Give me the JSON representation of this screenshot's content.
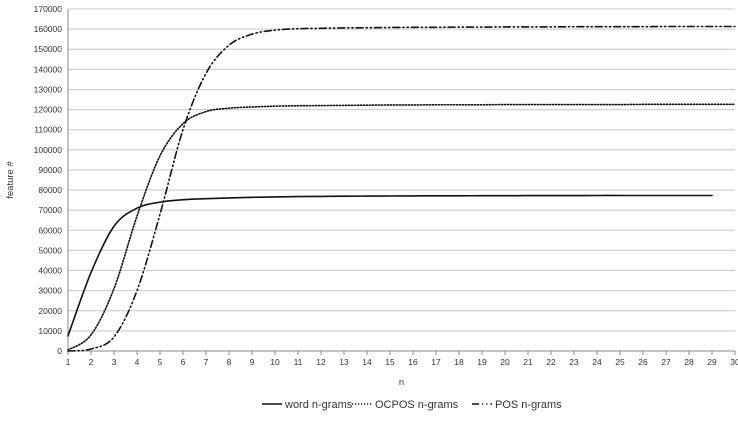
{
  "chart_data": {
    "type": "line",
    "xlabel": "n",
    "ylabel": "feature #",
    "xlim": [
      1,
      30
    ],
    "ylim": [
      0,
      170000
    ],
    "x_ticks": [
      1,
      2,
      3,
      4,
      5,
      6,
      7,
      8,
      9,
      10,
      11,
      12,
      13,
      14,
      15,
      16,
      17,
      18,
      19,
      20,
      21,
      22,
      23,
      24,
      25,
      26,
      27,
      28,
      29,
      30
    ],
    "y_ticks": [
      0,
      10000,
      20000,
      30000,
      40000,
      50000,
      60000,
      70000,
      80000,
      90000,
      100000,
      110000,
      120000,
      130000,
      140000,
      150000,
      160000,
      170000
    ],
    "grid": "horizontal",
    "legend": "bottom",
    "series": [
      {
        "name": "word n-grams",
        "style": "solid",
        "x": [
          1,
          2,
          3,
          4,
          5,
          6,
          7,
          8,
          9,
          10,
          11,
          12,
          13,
          14,
          15,
          16,
          17,
          18,
          19,
          20,
          21,
          22,
          23,
          24,
          25,
          26,
          27,
          28,
          29
        ],
        "values": [
          7500,
          39000,
          62000,
          71000,
          74000,
          75200,
          75700,
          76100,
          76400,
          76600,
          76750,
          76850,
          76950,
          77000,
          77050,
          77100,
          77150,
          77150,
          77200,
          77200,
          77250,
          77250,
          77250,
          77300,
          77300,
          77300,
          77300,
          77300,
          77300
        ]
      },
      {
        "name": "OCPOS n-grams",
        "style": "dotted",
        "x": [
          1,
          2,
          3,
          4,
          5,
          6,
          7,
          8,
          9,
          10,
          11,
          12,
          13,
          14,
          15,
          16,
          17,
          18,
          19,
          20,
          21,
          22,
          23,
          24,
          25,
          26,
          27,
          28,
          29,
          30
        ],
        "values": [
          500,
          8000,
          31000,
          67000,
          97000,
          113000,
          119000,
          120700,
          121300,
          121700,
          121900,
          122000,
          122100,
          122200,
          122300,
          122300,
          122400,
          122400,
          122400,
          122500,
          122500,
          122500,
          122500,
          122500,
          122500,
          122600,
          122600,
          122600,
          122600,
          122600
        ]
      },
      {
        "name": "POS n-grams",
        "style": "dash-dot-dot",
        "x": [
          1,
          2,
          3,
          4,
          5,
          6,
          7,
          8,
          9,
          10,
          11,
          12,
          13,
          14,
          15,
          16,
          17,
          18,
          19,
          20,
          21,
          22,
          23,
          24,
          25,
          26,
          27,
          28,
          29,
          30
        ],
        "values": [
          0,
          1000,
          7000,
          30000,
          68000,
          110000,
          138000,
          152000,
          157500,
          159500,
          160200,
          160400,
          160600,
          160700,
          160800,
          160900,
          160900,
          161000,
          161000,
          161100,
          161100,
          161100,
          161200,
          161200,
          161200,
          161200,
          161300,
          161300,
          161300,
          161300
        ]
      }
    ]
  }
}
